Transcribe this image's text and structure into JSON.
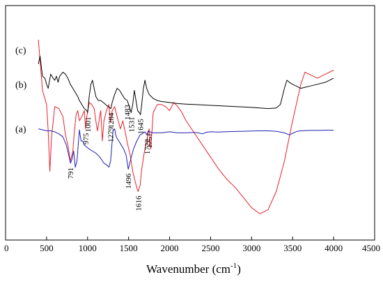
{
  "chart_data": {
    "type": "line",
    "title": "",
    "xlabel": "Wavenumber (cm",
    "xlabel_sup": "-1",
    "xlabel_close": ")",
    "ylabel": "",
    "xlim": [
      0,
      4500
    ],
    "xticks": [
      0,
      500,
      1000,
      1500,
      2000,
      2500,
      3000,
      3500,
      4000,
      4500
    ],
    "grid": false,
    "series": [
      {
        "name": "(c)",
        "color": "#e8202a",
        "points": [
          [
            400,
            90
          ],
          [
            450,
            65
          ],
          [
            500,
            58
          ],
          [
            520,
            45
          ],
          [
            540,
            25
          ],
          [
            560,
            42
          ],
          [
            600,
            57
          ],
          [
            650,
            56
          ],
          [
            700,
            52
          ],
          [
            730,
            43
          ],
          [
            760,
            38
          ],
          [
            790,
            30
          ],
          [
            820,
            35
          ],
          [
            840,
            45
          ],
          [
            860,
            53
          ],
          [
            880,
            55
          ],
          [
            900,
            50
          ],
          [
            930,
            52
          ],
          [
            960,
            55
          ],
          [
            975,
            46
          ],
          [
            990,
            52
          ],
          [
            1020,
            59
          ],
          [
            1050,
            58
          ],
          [
            1080,
            56
          ],
          [
            1100,
            50
          ],
          [
            1120,
            45
          ],
          [
            1140,
            50
          ],
          [
            1160,
            55
          ],
          [
            1180,
            40
          ],
          [
            1200,
            50
          ],
          [
            1230,
            55
          ],
          [
            1260,
            58
          ],
          [
            1279,
            49
          ],
          [
            1300,
            55
          ],
          [
            1330,
            57
          ],
          [
            1360,
            52
          ],
          [
            1400,
            46
          ],
          [
            1430,
            50
          ],
          [
            1460,
            44
          ],
          [
            1490,
            38
          ],
          [
            1520,
            33
          ],
          [
            1550,
            25
          ],
          [
            1580,
            20
          ],
          [
            1600,
            17
          ],
          [
            1616,
            15
          ],
          [
            1640,
            18
          ],
          [
            1660,
            26
          ],
          [
            1690,
            34
          ],
          [
            1710,
            38
          ],
          [
            1730,
            42
          ],
          [
            1751,
            46
          ],
          [
            1770,
            36
          ],
          [
            1800,
            54
          ],
          [
            1850,
            58
          ],
          [
            1900,
            58
          ],
          [
            1950,
            57
          ],
          [
            2000,
            55
          ],
          [
            2050,
            59
          ],
          [
            2100,
            57
          ],
          [
            2150,
            54
          ],
          [
            2200,
            50
          ],
          [
            2300,
            44
          ],
          [
            2400,
            38
          ],
          [
            2500,
            32
          ],
          [
            2600,
            26
          ],
          [
            2700,
            21
          ],
          [
            2800,
            17
          ],
          [
            2900,
            12
          ],
          [
            3000,
            7
          ],
          [
            3100,
            4
          ],
          [
            3200,
            6
          ],
          [
            3300,
            15
          ],
          [
            3400,
            30
          ],
          [
            3500,
            50
          ],
          [
            3600,
            68
          ],
          [
            3650,
            74
          ],
          [
            3700,
            73
          ],
          [
            3800,
            71
          ],
          [
            3900,
            73
          ],
          [
            4000,
            75
          ]
        ]
      },
      {
        "name": "(b)",
        "color": "#000000",
        "points": [
          [
            400,
            78
          ],
          [
            420,
            82
          ],
          [
            450,
            72
          ],
          [
            480,
            71
          ],
          [
            500,
            68
          ],
          [
            520,
            66
          ],
          [
            550,
            73
          ],
          [
            580,
            71
          ],
          [
            600,
            70
          ],
          [
            620,
            72
          ],
          [
            640,
            69
          ],
          [
            660,
            72
          ],
          [
            700,
            74
          ],
          [
            730,
            73
          ],
          [
            760,
            71
          ],
          [
            790,
            68
          ],
          [
            820,
            66
          ],
          [
            850,
            64
          ],
          [
            880,
            62
          ],
          [
            900,
            60
          ],
          [
            930,
            58
          ],
          [
            960,
            56
          ],
          [
            990,
            55
          ],
          [
            1001,
            54
          ],
          [
            1020,
            62
          ],
          [
            1040,
            68
          ],
          [
            1060,
            70
          ],
          [
            1080,
            66
          ],
          [
            1100,
            62
          ],
          [
            1130,
            60
          ],
          [
            1160,
            60
          ],
          [
            1190,
            59
          ],
          [
            1220,
            58
          ],
          [
            1250,
            57
          ],
          [
            1284,
            56
          ],
          [
            1300,
            59
          ],
          [
            1330,
            63
          ],
          [
            1360,
            66
          ],
          [
            1390,
            65
          ],
          [
            1420,
            63
          ],
          [
            1450,
            61
          ],
          [
            1483,
            60
          ],
          [
            1500,
            58
          ],
          [
            1531,
            54
          ],
          [
            1550,
            58
          ],
          [
            1570,
            65
          ],
          [
            1590,
            60
          ],
          [
            1610,
            55
          ],
          [
            1630,
            54
          ],
          [
            1645,
            53
          ],
          [
            1660,
            58
          ],
          [
            1680,
            66
          ],
          [
            1700,
            70
          ],
          [
            1720,
            66
          ],
          [
            1751,
            63
          ],
          [
            1800,
            61
          ],
          [
            1850,
            60
          ],
          [
            1900,
            59.5
          ],
          [
            2000,
            59
          ],
          [
            2100,
            58.5
          ],
          [
            2200,
            58.2
          ],
          [
            2300,
            58
          ],
          [
            2400,
            57.8
          ],
          [
            2500,
            57.6
          ],
          [
            2600,
            57.4
          ],
          [
            2700,
            57.2
          ],
          [
            2800,
            57
          ],
          [
            2900,
            56.8
          ],
          [
            3000,
            56.6
          ],
          [
            3100,
            56.3
          ],
          [
            3200,
            56
          ],
          [
            3300,
            56.3
          ],
          [
            3350,
            58
          ],
          [
            3400,
            66
          ],
          [
            3430,
            70
          ],
          [
            3460,
            69
          ],
          [
            3500,
            68
          ],
          [
            3550,
            67
          ],
          [
            3600,
            66
          ],
          [
            3650,
            66.5
          ],
          [
            3700,
            67
          ],
          [
            3800,
            68
          ],
          [
            3900,
            69
          ],
          [
            4000,
            71
          ]
        ]
      },
      {
        "name": "(a)",
        "color": "#1f1fb0",
        "points": [
          [
            400,
            46
          ],
          [
            450,
            45.5
          ],
          [
            500,
            45
          ],
          [
            550,
            45
          ],
          [
            600,
            44.5
          ],
          [
            650,
            43.5
          ],
          [
            700,
            42
          ],
          [
            740,
            38
          ],
          [
            770,
            33
          ],
          [
            791,
            29
          ],
          [
            810,
            31
          ],
          [
            830,
            35
          ],
          [
            850,
            27
          ],
          [
            870,
            30
          ],
          [
            900,
            45.5
          ],
          [
            920,
            40
          ],
          [
            940,
            40
          ],
          [
            960,
            38
          ],
          [
            990,
            37
          ],
          [
            1020,
            36
          ],
          [
            1060,
            35
          ],
          [
            1100,
            34
          ],
          [
            1150,
            32
          ],
          [
            1200,
            29
          ],
          [
            1240,
            28
          ],
          [
            1260,
            27
          ],
          [
            1280,
            30
          ],
          [
            1310,
            45
          ],
          [
            1330,
            46
          ],
          [
            1350,
            42
          ],
          [
            1380,
            40
          ],
          [
            1410,
            38
          ],
          [
            1440,
            36
          ],
          [
            1470,
            33
          ],
          [
            1496,
            26
          ],
          [
            1520,
            30
          ],
          [
            1560,
            36
          ],
          [
            1600,
            40
          ],
          [
            1640,
            43
          ],
          [
            1680,
            44
          ],
          [
            1700,
            44.5
          ],
          [
            1722,
            43
          ],
          [
            1740,
            45
          ],
          [
            1760,
            44.5
          ],
          [
            1800,
            44
          ],
          [
            1900,
            44
          ],
          [
            2000,
            44.5
          ],
          [
            2100,
            44
          ],
          [
            2200,
            44
          ],
          [
            2300,
            44.2
          ],
          [
            2350,
            44
          ],
          [
            2400,
            43.5
          ],
          [
            2450,
            44.3
          ],
          [
            2500,
            44.5
          ],
          [
            2600,
            44.4
          ],
          [
            2700,
            44.6
          ],
          [
            2800,
            44.7
          ],
          [
            2900,
            44.8
          ],
          [
            3000,
            44.9
          ],
          [
            3100,
            45
          ],
          [
            3200,
            45
          ],
          [
            3300,
            44.8
          ],
          [
            3400,
            44
          ],
          [
            3460,
            43
          ],
          [
            3500,
            43.8
          ],
          [
            3550,
            44.7
          ],
          [
            3600,
            45
          ],
          [
            3700,
            45.2
          ],
          [
            3800,
            45.2
          ],
          [
            3900,
            45.3
          ],
          [
            4000,
            45.3
          ]
        ]
      }
    ],
    "trace_labels": [
      "(c)",
      "(b)",
      "(a)"
    ],
    "annotations": [
      {
        "text": "975",
        "x": 975,
        "series": "(c)"
      },
      {
        "text": "1279",
        "x": 1279,
        "series": "(c)"
      },
      {
        "text": "1616",
        "x": 1616,
        "series": "(c)"
      },
      {
        "text": "1751",
        "x": 1751,
        "series": "(c)"
      },
      {
        "text": "1001",
        "x": 1001,
        "series": "(b)"
      },
      {
        "text": "1284",
        "x": 1284,
        "series": "(b)"
      },
      {
        "text": "1483",
        "x": 1483,
        "series": "(b)"
      },
      {
        "text": "1531",
        "x": 1531,
        "series": "(b)"
      },
      {
        "text": "1645",
        "x": 1645,
        "series": "(b)"
      },
      {
        "text": "791",
        "x": 791,
        "series": "(a)"
      },
      {
        "text": "1496",
        "x": 1496,
        "series": "(a)"
      },
      {
        "text": "1722",
        "x": 1722,
        "series": "(a)"
      }
    ]
  }
}
